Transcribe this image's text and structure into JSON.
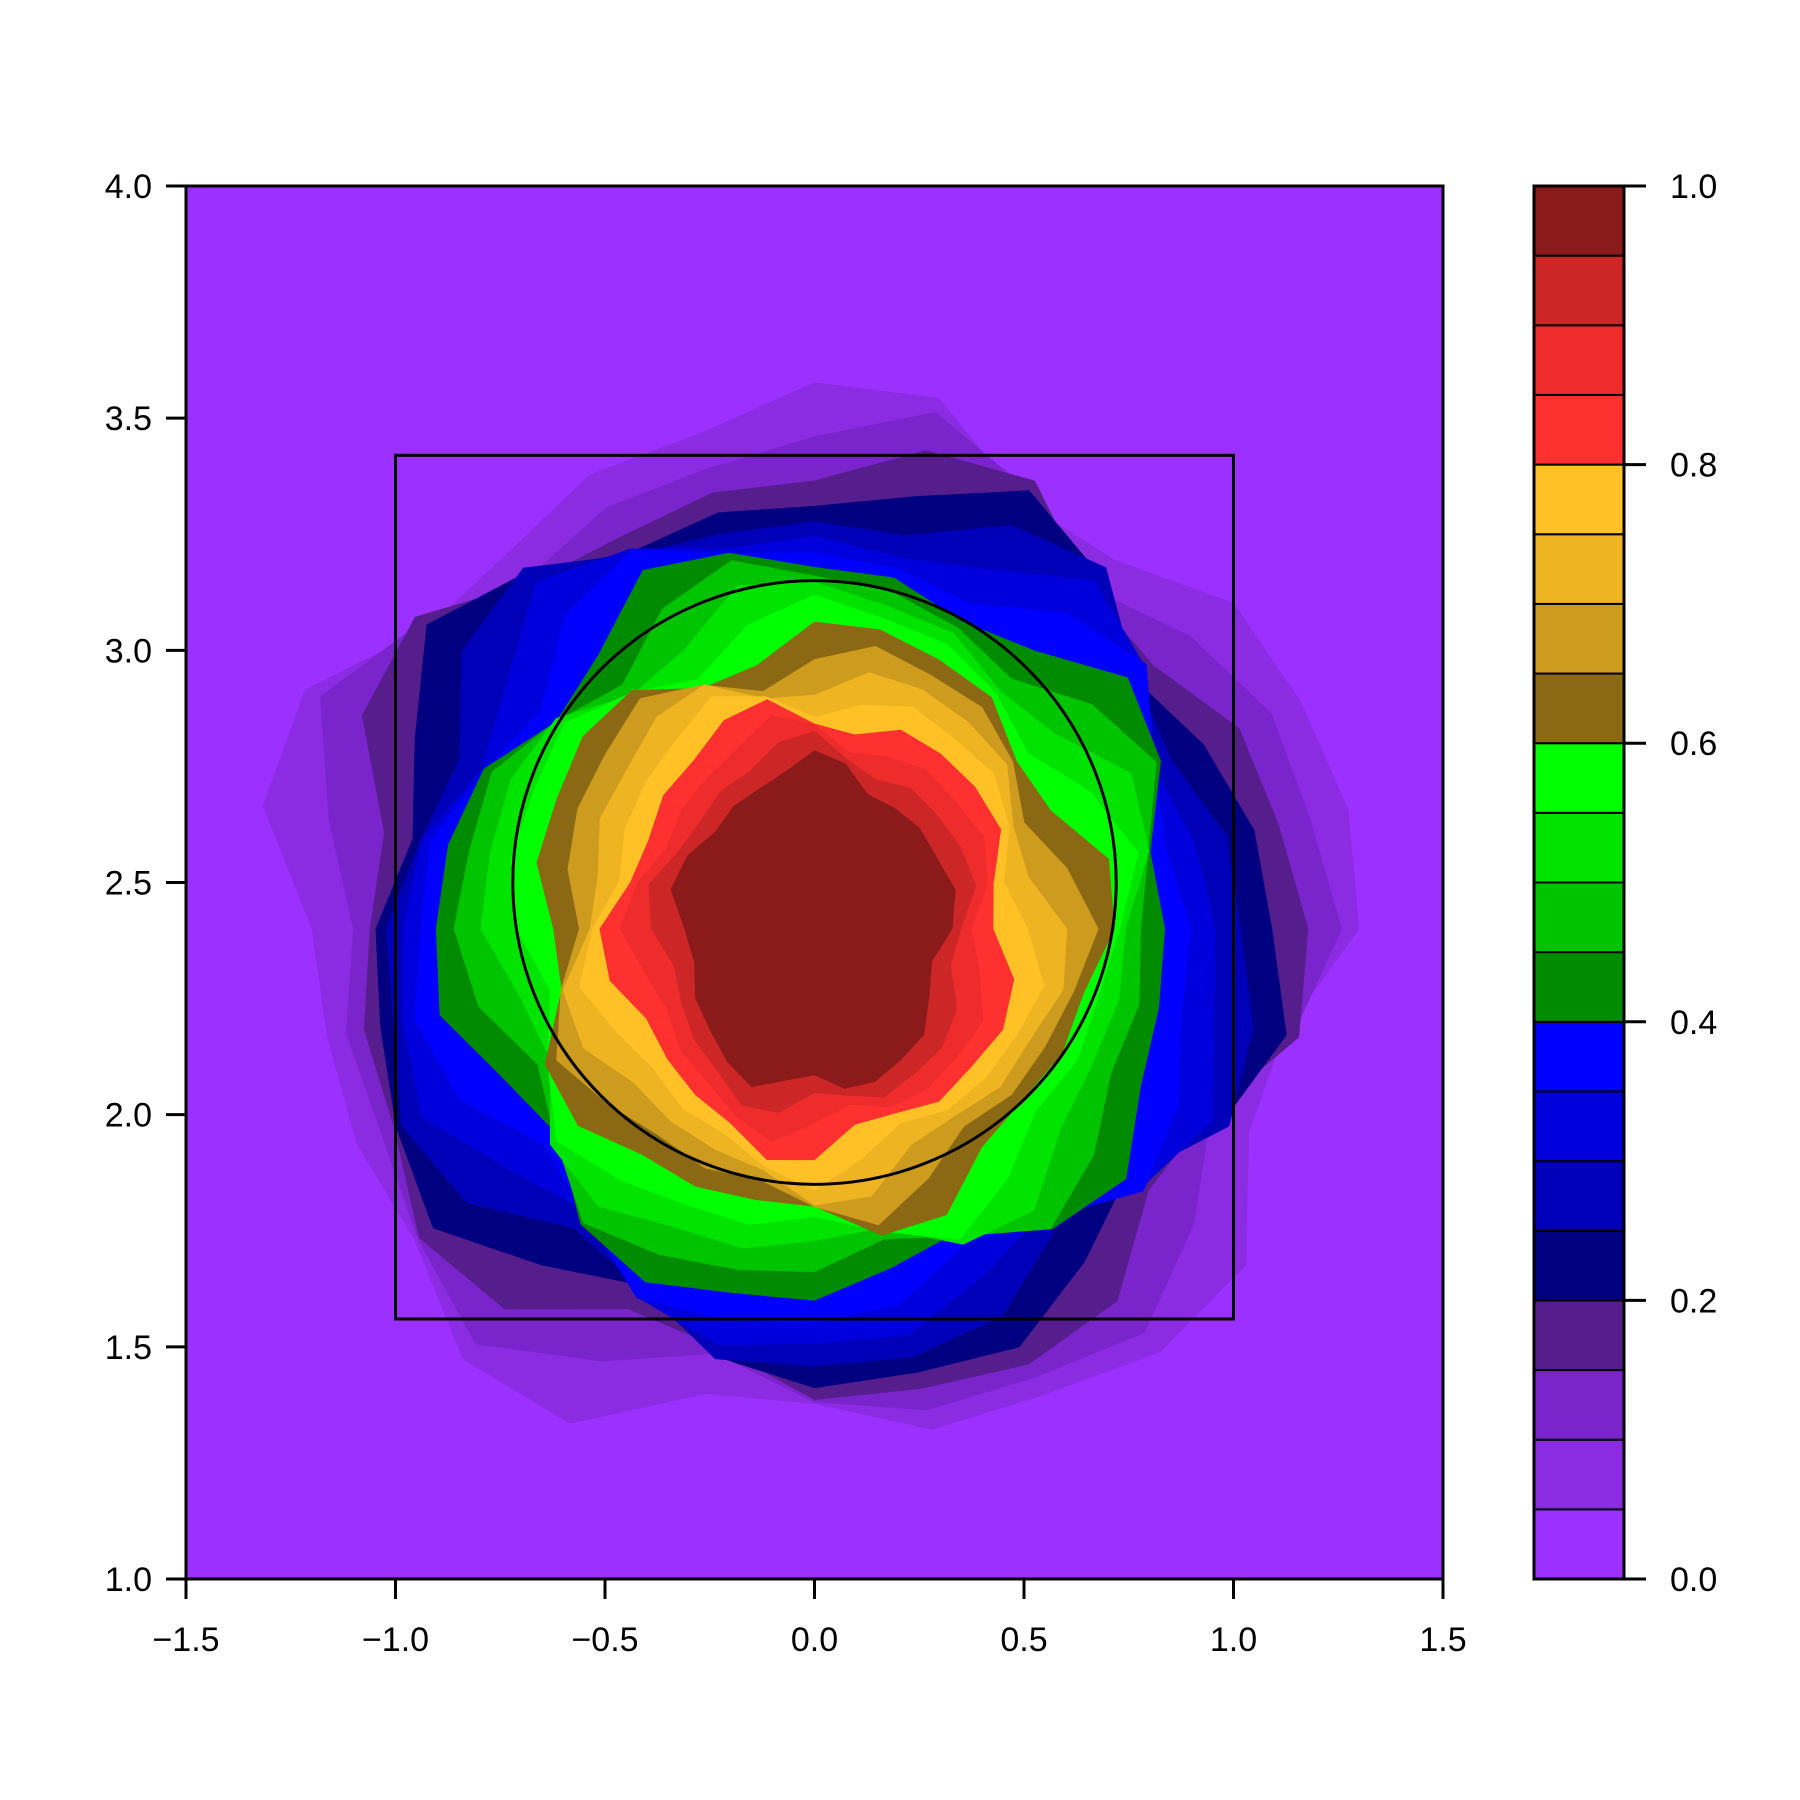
{
  "chart_data": {
    "type": "heatmap",
    "title": "",
    "xlabel": "",
    "ylabel": "",
    "xlim": [
      -1.5,
      1.5
    ],
    "ylim": [
      1.0,
      4.0
    ],
    "x_ticks": [
      "−1.5",
      "−1.0",
      "−0.5",
      "0.0",
      "0.5",
      "1.0",
      "1.5"
    ],
    "x_tick_values": [
      -1.5,
      -1.0,
      -0.5,
      0.0,
      0.5,
      1.0,
      1.5
    ],
    "y_ticks": [
      "1.0",
      "1.5",
      "2.0",
      "2.5",
      "3.0",
      "3.5",
      "4.0"
    ],
    "y_tick_values": [
      1.0,
      1.5,
      2.0,
      2.5,
      3.0,
      3.5,
      4.0
    ],
    "colorbar": {
      "range": [
        0.0,
        1.0
      ],
      "ticks": [
        "0.0",
        "0.2",
        "0.4",
        "0.6",
        "0.8",
        "1.0"
      ],
      "tick_values": [
        0.0,
        0.2,
        0.4,
        0.6,
        0.8,
        1.0
      ],
      "levels": [
        0.0,
        0.05,
        0.1,
        0.15,
        0.2,
        0.25,
        0.3,
        0.35,
        0.4,
        0.45,
        0.5,
        0.55,
        0.6,
        0.65,
        0.7,
        0.75,
        0.8,
        0.85,
        0.9,
        0.95,
        1.0
      ],
      "colors": [
        "#9b30ff",
        "#8b2be2",
        "#7a25cc",
        "#561d8c",
        "#000080",
        "#0000b8",
        "#0000dd",
        "#0000ff",
        "#008b00",
        "#00c400",
        "#00e400",
        "#00ff00",
        "#8b6914",
        "#cd9b1d",
        "#eeb422",
        "#ffc125",
        "#ff3030",
        "#ee2c2c",
        "#cd2626",
        "#8b1a1a"
      ]
    },
    "strike_zone": {
      "x": [
        -1.0,
        1.0
      ],
      "y": [
        1.56,
        3.42
      ]
    },
    "circle": {
      "center": [
        0.0,
        2.5
      ],
      "radius_x": 0.72,
      "radius_y": 0.65
    },
    "blob": {
      "background_level": 0.0,
      "peak_level": 1.0,
      "center": [
        0.0,
        2.4
      ],
      "contour_radii_x": [
        1.25,
        1.18,
        1.12,
        1.07,
        1.02,
        0.97,
        0.92,
        0.87,
        0.82,
        0.77,
        0.72,
        0.67,
        0.62,
        0.57,
        0.52,
        0.47,
        0.42,
        0.37,
        0.32
      ],
      "contour_radii_y": [
        1.1,
        1.04,
        0.99,
        0.95,
        0.91,
        0.87,
        0.83,
        0.79,
        0.75,
        0.71,
        0.67,
        0.63,
        0.59,
        0.55,
        0.51,
        0.47,
        0.43,
        0.39,
        0.35
      ]
    }
  }
}
